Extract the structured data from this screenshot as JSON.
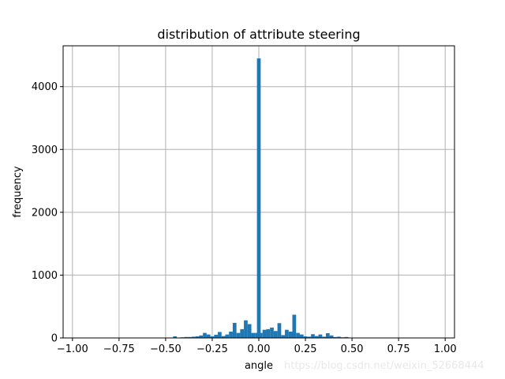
{
  "chart_data": {
    "type": "bar",
    "title": "distribution of attribute steering",
    "xlabel": "angle",
    "ylabel": "frequency",
    "xlim": [
      -1.05,
      1.05
    ],
    "ylim": [
      0,
      4650
    ],
    "grid": true,
    "xticks": [
      -1.0,
      -0.75,
      -0.5,
      -0.25,
      0.0,
      0.25,
      0.5,
      0.75,
      1.0
    ],
    "xtick_labels": [
      "−1.00",
      "−0.75",
      "−0.50",
      "−0.25",
      "0.00",
      "0.25",
      "0.50",
      "0.75",
      "1.00"
    ],
    "yticks": [
      0,
      1000,
      2000,
      3000,
      4000
    ],
    "ytick_labels": [
      "0",
      "1000",
      "2000",
      "3000",
      "4000"
    ],
    "bin_width": 0.02,
    "bar_color": "#1f77b4",
    "bins": [
      {
        "x": -0.47,
        "value": 5
      },
      {
        "x": -0.45,
        "value": 25
      },
      {
        "x": -0.43,
        "value": 5
      },
      {
        "x": -0.41,
        "value": 10
      },
      {
        "x": -0.39,
        "value": 15
      },
      {
        "x": -0.37,
        "value": 15
      },
      {
        "x": -0.35,
        "value": 20
      },
      {
        "x": -0.33,
        "value": 25
      },
      {
        "x": -0.31,
        "value": 40
      },
      {
        "x": -0.29,
        "value": 80
      },
      {
        "x": -0.27,
        "value": 55
      },
      {
        "x": -0.25,
        "value": 25
      },
      {
        "x": -0.23,
        "value": 50
      },
      {
        "x": -0.21,
        "value": 95
      },
      {
        "x": -0.19,
        "value": 30
      },
      {
        "x": -0.17,
        "value": 55
      },
      {
        "x": -0.15,
        "value": 100
      },
      {
        "x": -0.13,
        "value": 240
      },
      {
        "x": -0.11,
        "value": 80
      },
      {
        "x": -0.09,
        "value": 140
      },
      {
        "x": -0.07,
        "value": 280
      },
      {
        "x": -0.05,
        "value": 220
      },
      {
        "x": -0.03,
        "value": 80
      },
      {
        "x": -0.01,
        "value": 80
      },
      {
        "x": 0.0,
        "value": 4450
      },
      {
        "x": 0.01,
        "value": 80
      },
      {
        "x": 0.03,
        "value": 130
      },
      {
        "x": 0.05,
        "value": 140
      },
      {
        "x": 0.07,
        "value": 165
      },
      {
        "x": 0.09,
        "value": 110
      },
      {
        "x": 0.11,
        "value": 235
      },
      {
        "x": 0.13,
        "value": 45
      },
      {
        "x": 0.15,
        "value": 130
      },
      {
        "x": 0.17,
        "value": 100
      },
      {
        "x": 0.19,
        "value": 370
      },
      {
        "x": 0.21,
        "value": 80
      },
      {
        "x": 0.23,
        "value": 55
      },
      {
        "x": 0.25,
        "value": 25
      },
      {
        "x": 0.27,
        "value": 20
      },
      {
        "x": 0.29,
        "value": 60
      },
      {
        "x": 0.31,
        "value": 30
      },
      {
        "x": 0.33,
        "value": 55
      },
      {
        "x": 0.35,
        "value": 20
      },
      {
        "x": 0.37,
        "value": 75
      },
      {
        "x": 0.39,
        "value": 40
      },
      {
        "x": 0.41,
        "value": 15
      },
      {
        "x": 0.43,
        "value": 20
      },
      {
        "x": 0.45,
        "value": 10
      },
      {
        "x": 0.47,
        "value": 15
      },
      {
        "x": 0.49,
        "value": 5
      }
    ]
  },
  "watermark": "https://blog.csdn.net/weixin_52668444"
}
